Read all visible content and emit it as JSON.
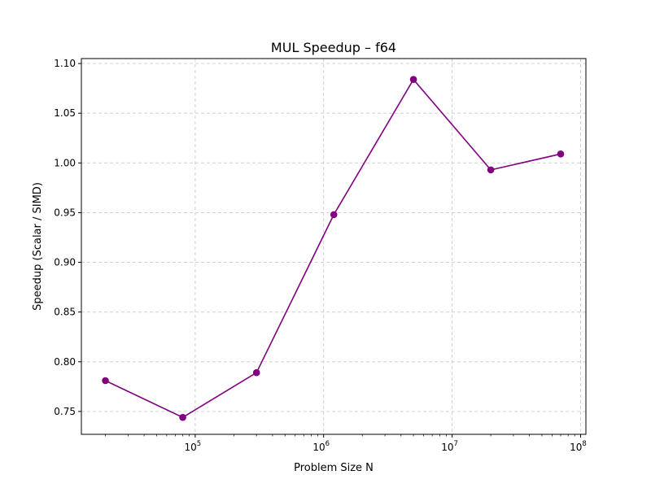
{
  "chart_data": {
    "type": "line",
    "title": "MUL Speedup – f64",
    "xlabel": "Problem Size N",
    "ylabel": "Speedup (Scalar / SIMD)",
    "xscale": "log",
    "xlim": [
      13000,
      110000000
    ],
    "ylim": [
      0.727,
      1.105
    ],
    "grid": true,
    "x_ticks": [
      {
        "base": "10",
        "exp": "5",
        "value": 100000
      },
      {
        "base": "10",
        "exp": "6",
        "value": 1000000
      },
      {
        "base": "10",
        "exp": "7",
        "value": 10000000
      },
      {
        "base": "10",
        "exp": "8",
        "value": 100000000
      }
    ],
    "y_ticks": [
      {
        "label": "0.75",
        "value": 0.75
      },
      {
        "label": "0.80",
        "value": 0.8
      },
      {
        "label": "0.85",
        "value": 0.85
      },
      {
        "label": "0.90",
        "value": 0.9
      },
      {
        "label": "0.95",
        "value": 0.95
      },
      {
        "label": "1.00",
        "value": 1.0
      },
      {
        "label": "1.05",
        "value": 1.05
      },
      {
        "label": "1.10",
        "value": 1.1
      }
    ],
    "series": [
      {
        "color": "#800080",
        "x": [
          20000,
          80000,
          300000,
          1200000,
          5000000,
          20000000,
          70000000
        ],
        "y": [
          0.781,
          0.744,
          0.789,
          0.948,
          1.084,
          0.993,
          1.009
        ]
      }
    ]
  }
}
